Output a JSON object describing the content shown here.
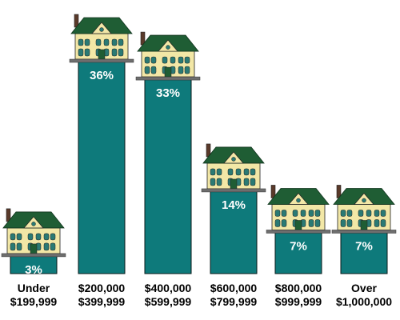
{
  "chart_data": {
    "type": "bar",
    "title": "",
    "xlabel": "",
    "ylabel": "",
    "categories": [
      [
        "Under",
        "$199,999"
      ],
      [
        "$200,000",
        "$399,999"
      ],
      [
        "$400,000",
        "$599,999"
      ],
      [
        "$600,000",
        "$799,999"
      ],
      [
        "$800,000",
        "$999,999"
      ],
      [
        "Over",
        "$1,000,000"
      ]
    ],
    "values": [
      3,
      36,
      33,
      14,
      7,
      7
    ],
    "value_labels": [
      "3%",
      "36%",
      "33%",
      "14%",
      "7%",
      "7%"
    ],
    "ylim": [
      0,
      40
    ],
    "grid": false,
    "legend": "none"
  },
  "colors": {
    "bar": "#0e7a7b",
    "bar_outline": "#0a1a1a",
    "value_text": "#ffffff",
    "roof": "#1f5d34",
    "house_wall": "#f2e7a6",
    "window": "#2a7a74",
    "house_base": "#6e6e6e"
  },
  "icons": {
    "bar_topper": "house-icon"
  }
}
